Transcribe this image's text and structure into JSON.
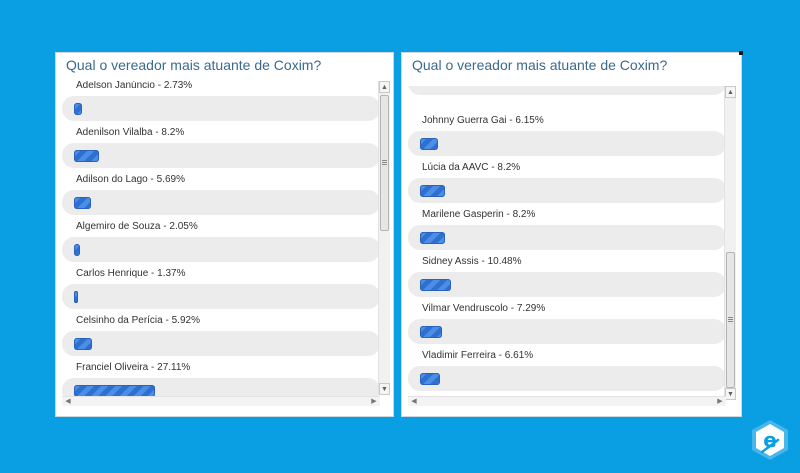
{
  "left_poll": {
    "title": "Qual o vereador mais atuante de Coxim?",
    "items": [
      {
        "label": "Adelson Janúncio - 2.73%",
        "percent": 2.73
      },
      {
        "label": "Adenilson Vilalba - 8.2%",
        "percent": 8.2
      },
      {
        "label": "Adilson do Lago - 5.69%",
        "percent": 5.69
      },
      {
        "label": "Algemiro de Souza - 2.05%",
        "percent": 2.05
      },
      {
        "label": "Carlos Henrique - 1.37%",
        "percent": 1.37
      },
      {
        "label": "Celsinho da Perícia - 5.92%",
        "percent": 5.92
      },
      {
        "label": "Franciel Oliveira - 27.11%",
        "percent": 27.11
      }
    ]
  },
  "right_poll": {
    "title": "Qual o vereador mais atuante de Coxim?",
    "items": [
      {
        "label": "Johnny Guerra Gai - 6.15%",
        "percent": 6.15
      },
      {
        "label": "Lúcia da AAVC - 8.2%",
        "percent": 8.2
      },
      {
        "label": "Marilene Gasperin - 8.2%",
        "percent": 8.2
      },
      {
        "label": "Sidney Assis - 10.48%",
        "percent": 10.48
      },
      {
        "label": "Vilmar Vendruscolo - 7.29%",
        "percent": 7.29
      },
      {
        "label": "Vladimir Ferreira - 6.61%",
        "percent": 6.61
      }
    ]
  },
  "colors": {
    "background": "#0a9ee3",
    "title": "#3b6a8c",
    "bar": "#3a7fdc",
    "track": "#ececec"
  },
  "logo": {
    "icon": "e-logo-icon"
  }
}
